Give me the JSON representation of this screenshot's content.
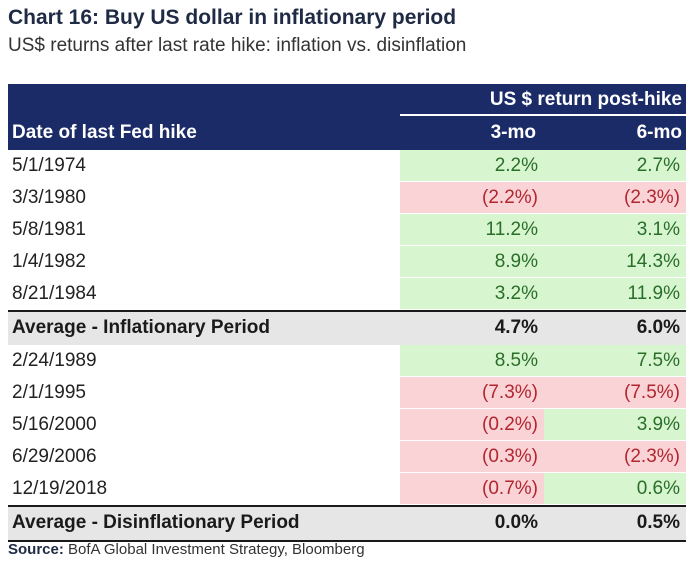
{
  "title": "Chart 16: Buy US dollar in inflationary period",
  "subtitle": "US$ returns after last rate hike: inflation vs. disinflation",
  "source_label": "Source:",
  "source_text": "BofA Global Investment Strategy, Bloomberg",
  "colors": {
    "header_bg": "#1a2b68",
    "positive_bg": "#d7f5cf",
    "negative_bg": "#f9d3d6",
    "average_bg": "#e6e6e6"
  },
  "chart_data": {
    "type": "table",
    "group_header": "US $ return post-hike",
    "columns": [
      "Date of last Fed hike",
      "3-mo",
      "6-mo"
    ],
    "inflationary_rows": [
      {
        "date": "5/1/1974",
        "m3": "2.2%",
        "m6": "2.7%",
        "m3_sign": "pos",
        "m6_sign": "pos"
      },
      {
        "date": "3/3/1980",
        "m3": "(2.2%)",
        "m6": "(2.3%)",
        "m3_sign": "neg",
        "m6_sign": "neg"
      },
      {
        "date": "5/8/1981",
        "m3": "11.2%",
        "m6": "3.1%",
        "m3_sign": "pos",
        "m6_sign": "pos"
      },
      {
        "date": "1/4/1982",
        "m3": "8.9%",
        "m6": "14.3%",
        "m3_sign": "pos",
        "m6_sign": "pos"
      },
      {
        "date": "8/21/1984",
        "m3": "3.2%",
        "m6": "11.9%",
        "m3_sign": "pos",
        "m6_sign": "pos"
      }
    ],
    "inflationary_average": {
      "label": "Average - Inflationary Period",
      "m3": "4.7%",
      "m6": "6.0%"
    },
    "disinflationary_rows": [
      {
        "date": "2/24/1989",
        "m3": "8.5%",
        "m6": "7.5%",
        "m3_sign": "pos",
        "m6_sign": "pos"
      },
      {
        "date": "2/1/1995",
        "m3": "(7.3%)",
        "m6": "(7.5%)",
        "m3_sign": "neg",
        "m6_sign": "neg"
      },
      {
        "date": "5/16/2000",
        "m3": "(0.2%)",
        "m6": "3.9%",
        "m3_sign": "neg",
        "m6_sign": "pos"
      },
      {
        "date": "6/29/2006",
        "m3": "(0.3%)",
        "m6": "(2.3%)",
        "m3_sign": "neg",
        "m6_sign": "neg"
      },
      {
        "date": "12/19/2018",
        "m3": "(0.7%)",
        "m6": "0.6%",
        "m3_sign": "neg",
        "m6_sign": "pos"
      }
    ],
    "disinflationary_average": {
      "label": "Average - Disinflationary Period",
      "m3": "0.0%",
      "m6": "0.5%"
    }
  }
}
